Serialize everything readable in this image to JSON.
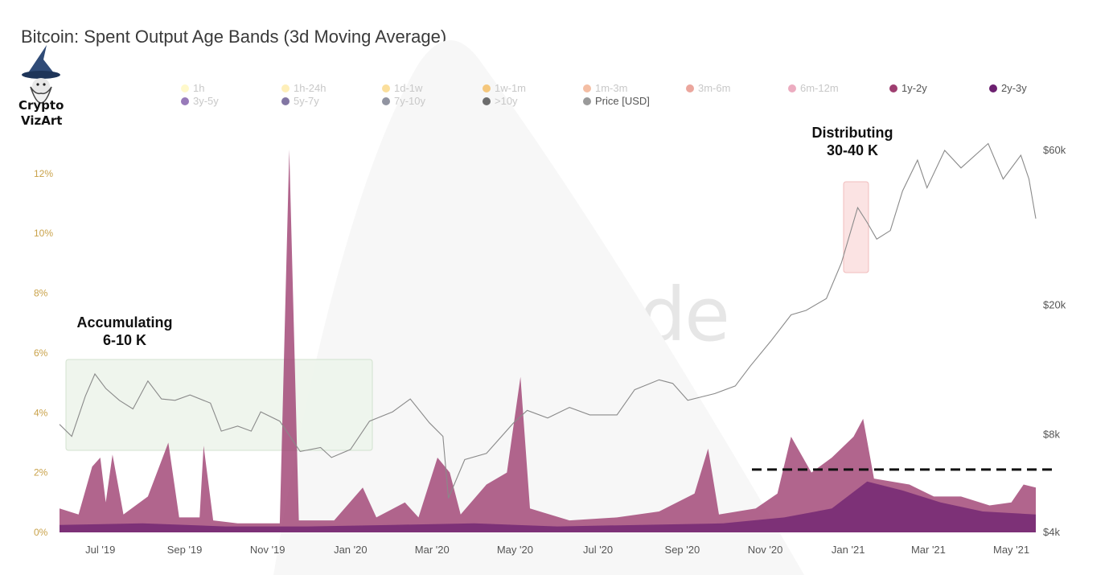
{
  "title": "Bitcoin: Spent Output Age Bands (3d Moving Average)",
  "logo": {
    "line1": "Crypto",
    "line2": "VizArt"
  },
  "watermark": "glassnode",
  "legend": [
    {
      "label": "1h",
      "color": "#fff5a8",
      "active": false
    },
    {
      "label": "1h-24h",
      "color": "#fde58a",
      "active": false
    },
    {
      "label": "1d-1w",
      "color": "#f8c95a",
      "active": false
    },
    {
      "label": "1w-1m",
      "color": "#f4a629",
      "active": false
    },
    {
      "label": "1m-3m",
      "color": "#ec9268",
      "active": false
    },
    {
      "label": "3m-6m",
      "color": "#de6a5c",
      "active": false
    },
    {
      "label": "6m-12m",
      "color": "#e07596",
      "active": false
    },
    {
      "label": "1y-2y",
      "color": "#9e3e70",
      "active": true
    },
    {
      "label": "2y-3y",
      "color": "#6c2070",
      "active": true
    },
    {
      "label": "3y-5y",
      "color": "#54218a",
      "active": false
    },
    {
      "label": "5y-7y",
      "color": "#2e1a66",
      "active": false
    },
    {
      "label": "7y-10y",
      "color": "#474c63",
      "active": false
    },
    {
      "label": ">10y",
      "color": "#111111",
      "active": false
    },
    {
      "label": "Price [USD]",
      "color": "#9a9a9a",
      "active": true
    }
  ],
  "annotations": {
    "accumulating": {
      "line1": "Accumulating",
      "line2": "6-10 K"
    },
    "distributing": {
      "line1": "Distributing",
      "line2": "30-40 K"
    }
  },
  "chart_data": {
    "type": "area",
    "x_ticks": [
      "Jul '19",
      "Sep '19",
      "Nov '19",
      "Jan '20",
      "Mar '20",
      "May '20",
      "Jul '20",
      "Sep '20",
      "Nov '20",
      "Jan '21",
      "Mar '21",
      "May '21"
    ],
    "y_left_ticks": [
      "0%",
      "2%",
      "4%",
      "6%",
      "8%",
      "10%",
      "12%"
    ],
    "y_left_range": [
      0,
      13.5
    ],
    "y_right_ticks": [
      "$4k",
      "$8k",
      "$20k",
      "$60k"
    ],
    "y_right_scale": "log",
    "y_right_range": [
      4000,
      70000
    ],
    "x_range": [
      "2019-06-01",
      "2021-05-19"
    ],
    "reference_level_percent": 2.1,
    "series": [
      {
        "name": "Price [USD]",
        "axis": "right",
        "points": [
          [
            "2019-06-01",
            8600
          ],
          [
            "2019-06-10",
            7900
          ],
          [
            "2019-06-20",
            10500
          ],
          [
            "2019-06-27",
            12300
          ],
          [
            "2019-07-05",
            11100
          ],
          [
            "2019-07-15",
            10200
          ],
          [
            "2019-07-25",
            9600
          ],
          [
            "2019-08-05",
            11700
          ],
          [
            "2019-08-15",
            10300
          ],
          [
            "2019-08-25",
            10200
          ],
          [
            "2019-09-05",
            10600
          ],
          [
            "2019-09-20",
            10000
          ],
          [
            "2019-09-28",
            8200
          ],
          [
            "2019-10-10",
            8500
          ],
          [
            "2019-10-20",
            8200
          ],
          [
            "2019-10-27",
            9400
          ],
          [
            "2019-11-10",
            8800
          ],
          [
            "2019-11-25",
            7100
          ],
          [
            "2019-12-10",
            7300
          ],
          [
            "2019-12-18",
            6800
          ],
          [
            "2020-01-01",
            7200
          ],
          [
            "2020-01-15",
            8800
          ],
          [
            "2020-02-01",
            9400
          ],
          [
            "2020-02-14",
            10300
          ],
          [
            "2020-02-28",
            8700
          ],
          [
            "2020-03-09",
            7900
          ],
          [
            "2020-03-13",
            5100
          ],
          [
            "2020-03-25",
            6700
          ],
          [
            "2020-04-10",
            7000
          ],
          [
            "2020-04-30",
            8700
          ],
          [
            "2020-05-10",
            9500
          ],
          [
            "2020-05-25",
            9000
          ],
          [
            "2020-06-10",
            9700
          ],
          [
            "2020-06-25",
            9200
          ],
          [
            "2020-07-15",
            9200
          ],
          [
            "2020-07-28",
            11000
          ],
          [
            "2020-08-15",
            11800
          ],
          [
            "2020-08-25",
            11500
          ],
          [
            "2020-09-05",
            10200
          ],
          [
            "2020-09-25",
            10700
          ],
          [
            "2020-10-10",
            11300
          ],
          [
            "2020-10-21",
            13000
          ],
          [
            "2020-11-05",
            15500
          ],
          [
            "2020-11-20",
            18700
          ],
          [
            "2020-12-01",
            19300
          ],
          [
            "2020-12-16",
            21000
          ],
          [
            "2020-12-27",
            27000
          ],
          [
            "2021-01-08",
            40000
          ],
          [
            "2021-01-15",
            36000
          ],
          [
            "2021-01-22",
            32000
          ],
          [
            "2021-02-01",
            34000
          ],
          [
            "2021-02-10",
            45000
          ],
          [
            "2021-02-21",
            56000
          ],
          [
            "2021-02-28",
            46000
          ],
          [
            "2021-03-13",
            60000
          ],
          [
            "2021-03-25",
            53000
          ],
          [
            "2021-04-14",
            63000
          ],
          [
            "2021-04-25",
            49000
          ],
          [
            "2021-05-08",
            58000
          ],
          [
            "2021-05-14",
            49000
          ],
          [
            "2021-05-19",
            37000
          ]
        ]
      },
      {
        "name": "1y-2y",
        "axis": "left",
        "points": [
          [
            "2019-06-01",
            0.8
          ],
          [
            "2019-06-15",
            0.6
          ],
          [
            "2019-06-25",
            2.2
          ],
          [
            "2019-07-01",
            2.5
          ],
          [
            "2019-07-05",
            1.0
          ],
          [
            "2019-07-10",
            2.6
          ],
          [
            "2019-07-18",
            0.6
          ],
          [
            "2019-08-05",
            1.2
          ],
          [
            "2019-08-20",
            3.0
          ],
          [
            "2019-08-28",
            0.5
          ],
          [
            "2019-09-12",
            0.5
          ],
          [
            "2019-09-15",
            2.9
          ],
          [
            "2019-09-22",
            0.4
          ],
          [
            "2019-10-10",
            0.3
          ],
          [
            "2019-11-10",
            0.3
          ],
          [
            "2019-11-17",
            12.8
          ],
          [
            "2019-11-24",
            0.4
          ],
          [
            "2019-12-20",
            0.4
          ],
          [
            "2020-01-10",
            1.5
          ],
          [
            "2020-01-20",
            0.5
          ],
          [
            "2020-02-10",
            1.0
          ],
          [
            "2020-02-20",
            0.5
          ],
          [
            "2020-03-05",
            2.5
          ],
          [
            "2020-03-14",
            2.0
          ],
          [
            "2020-03-22",
            0.6
          ],
          [
            "2020-04-10",
            1.6
          ],
          [
            "2020-04-25",
            2.0
          ],
          [
            "2020-05-05",
            5.2
          ],
          [
            "2020-05-12",
            0.8
          ],
          [
            "2020-06-10",
            0.4
          ],
          [
            "2020-07-15",
            0.5
          ],
          [
            "2020-08-15",
            0.7
          ],
          [
            "2020-09-10",
            1.3
          ],
          [
            "2020-09-20",
            2.8
          ],
          [
            "2020-09-28",
            0.6
          ],
          [
            "2020-10-25",
            0.8
          ],
          [
            "2020-11-10",
            1.3
          ],
          [
            "2020-11-20",
            3.2
          ],
          [
            "2020-12-05",
            2.0
          ],
          [
            "2020-12-20",
            2.5
          ],
          [
            "2021-01-05",
            3.2
          ],
          [
            "2021-01-12",
            3.8
          ],
          [
            "2021-01-20",
            1.8
          ],
          [
            "2021-02-15",
            1.6
          ],
          [
            "2021-03-05",
            1.2
          ],
          [
            "2021-03-25",
            1.2
          ],
          [
            "2021-04-15",
            0.9
          ],
          [
            "2021-05-01",
            1.0
          ],
          [
            "2021-05-10",
            1.6
          ],
          [
            "2021-05-19",
            1.5
          ]
        ]
      },
      {
        "name": "2y-3y",
        "axis": "left",
        "points": [
          [
            "2019-06-01",
            0.25
          ],
          [
            "2019-08-01",
            0.3
          ],
          [
            "2019-10-01",
            0.2
          ],
          [
            "2019-12-01",
            0.2
          ],
          [
            "2020-02-01",
            0.25
          ],
          [
            "2020-04-01",
            0.3
          ],
          [
            "2020-06-01",
            0.2
          ],
          [
            "2020-08-01",
            0.25
          ],
          [
            "2020-10-01",
            0.3
          ],
          [
            "2020-11-15",
            0.5
          ],
          [
            "2020-12-20",
            0.8
          ],
          [
            "2021-01-15",
            1.7
          ],
          [
            "2021-02-10",
            1.4
          ],
          [
            "2021-03-10",
            1.0
          ],
          [
            "2021-04-10",
            0.7
          ],
          [
            "2021-05-19",
            0.6
          ]
        ]
      }
    ]
  }
}
